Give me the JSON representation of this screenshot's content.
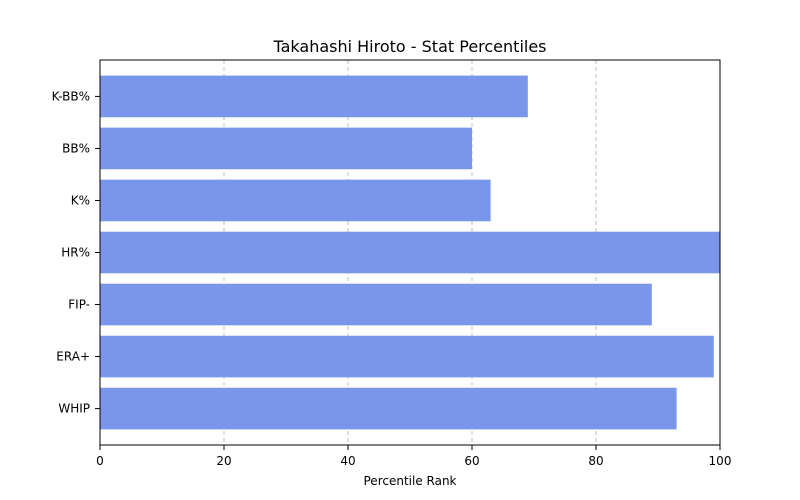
{
  "chart_data": {
    "type": "bar",
    "orientation": "horizontal",
    "title": "Takahashi Hiroto - Stat Percentiles",
    "xlabel": "Percentile Rank",
    "ylabel": "",
    "categories": [
      "WHIP",
      "ERA+",
      "FIP-",
      "HR%",
      "K%",
      "BB%",
      "K-BB%"
    ],
    "values": [
      93,
      99,
      89,
      100,
      63,
      60,
      69
    ],
    "xlim": [
      0,
      100
    ],
    "xticks": [
      "0",
      "20",
      "40",
      "60",
      "80",
      "100"
    ],
    "grid": "x-dashed",
    "bar_color": "#7a96ea"
  }
}
